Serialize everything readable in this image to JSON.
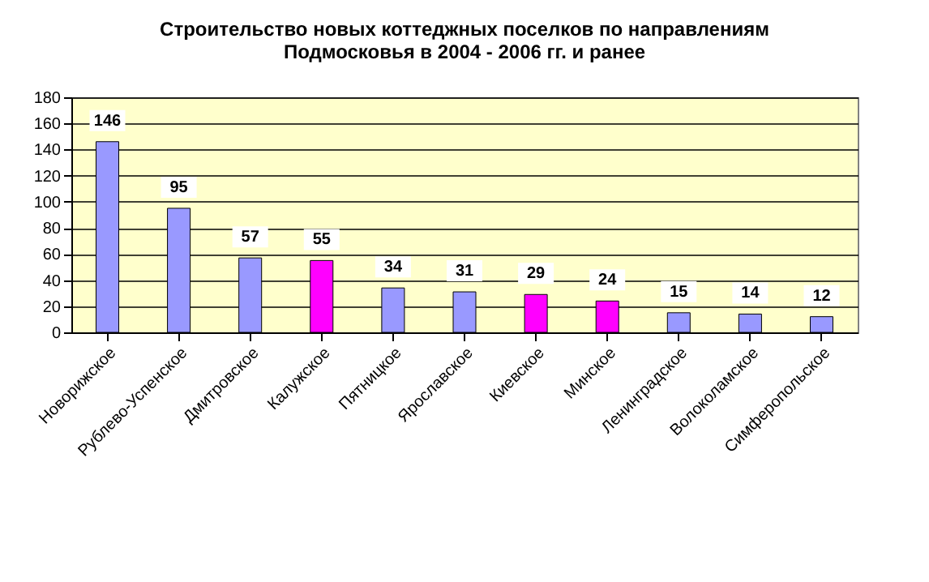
{
  "chart_data": {
    "type": "bar",
    "title": [
      "Строительство новых коттеджных поселков по направлениям",
      "Подмосковья в 2004 - 2006 гг. и ранее"
    ],
    "categories": [
      "Новорижское",
      "Рублево-Успенское",
      "Дмитровское",
      "Калужское",
      "Пятницкое",
      "Ярославское",
      "Киевское",
      "Минское",
      "Ленинградское",
      "Волоколамское",
      "Симферопольское"
    ],
    "values": [
      146,
      95,
      57,
      55,
      34,
      31,
      29,
      24,
      15,
      14,
      12
    ],
    "colors": [
      "#9999ff",
      "#9999ff",
      "#9999ff",
      "#ff00ff",
      "#9999ff",
      "#9999ff",
      "#ff00ff",
      "#ff00ff",
      "#9999ff",
      "#9999ff",
      "#9999ff"
    ],
    "ylim": [
      0,
      180
    ],
    "yticks": [
      0,
      20,
      40,
      60,
      80,
      100,
      120,
      140,
      160,
      180
    ],
    "grid": "y",
    "data_labels": true
  }
}
